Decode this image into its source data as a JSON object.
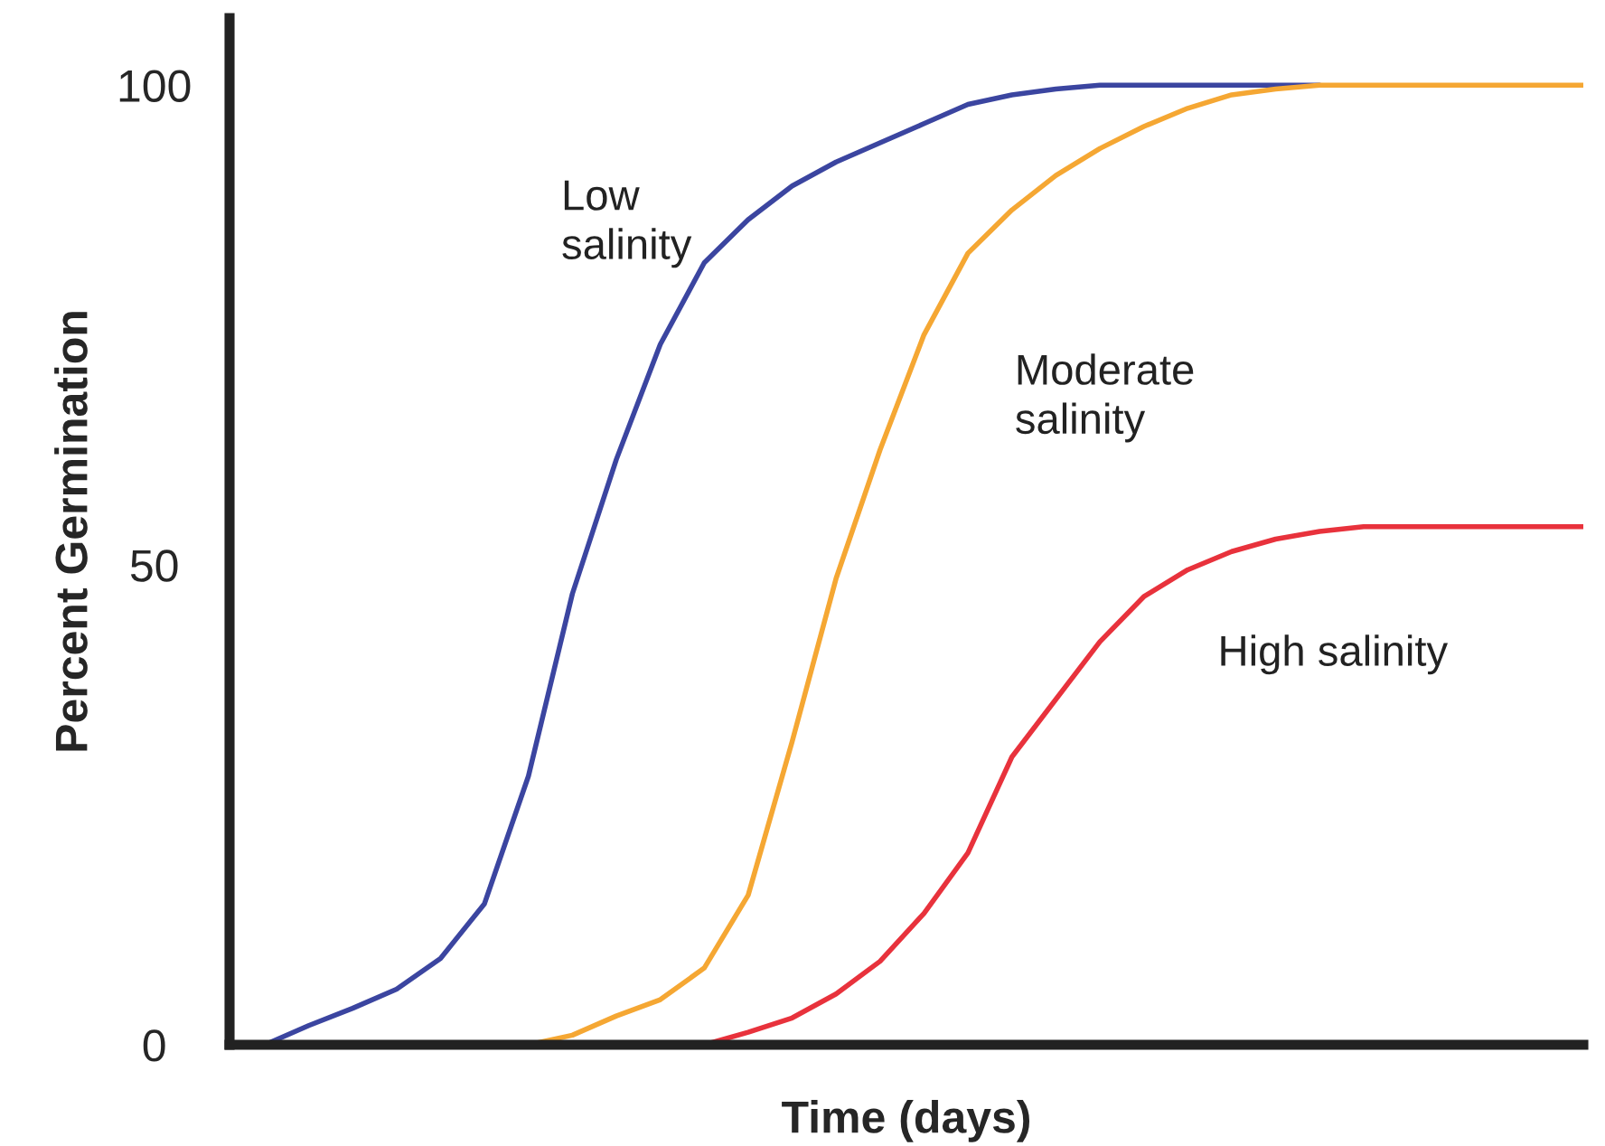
{
  "chart_data": {
    "type": "line",
    "xlabel": "Time (days)",
    "ylabel": "Percent Germination",
    "categories": [
      null,
      null,
      null,
      null,
      null,
      null,
      null,
      null,
      null,
      null,
      null,
      null,
      null,
      null,
      null,
      null,
      null,
      null,
      null,
      null,
      null,
      null,
      null,
      null,
      null,
      null,
      null,
      null,
      null,
      null,
      null
    ],
    "series": [
      {
        "name": "Low\nsalinity",
        "color": "#3b45a0",
        "values": [
          0,
          2,
          3.8,
          5.8,
          9,
          14.7,
          28,
          47,
          61,
          73,
          81.5,
          86,
          89.5,
          92,
          94,
          96,
          98,
          99,
          99.6,
          100,
          100,
          100,
          100,
          100,
          100,
          null,
          null,
          null,
          null,
          null,
          null
        ]
      },
      {
        "name": "Moderate\nsalinity",
        "color": "#f5a733",
        "values": [
          null,
          null,
          null,
          null,
          null,
          null,
          0,
          1,
          3,
          4.7,
          8,
          15.6,
          31.6,
          48.6,
          62,
          74,
          82.5,
          87,
          90.6,
          93.4,
          95.7,
          97.6,
          99,
          99.6,
          100,
          100,
          100,
          100,
          100,
          100,
          100
        ]
      },
      {
        "name": "High salinity",
        "color": "#e8323c",
        "values": [
          null,
          null,
          null,
          null,
          null,
          null,
          null,
          null,
          null,
          null,
          0,
          1.3,
          2.8,
          5.3,
          8.7,
          13.7,
          20,
          30,
          36,
          42,
          46.7,
          49.5,
          51.4,
          52.7,
          53.5,
          54,
          54,
          54,
          54,
          54,
          54
        ]
      }
    ],
    "ylim": [
      0,
      107
    ],
    "yticks": [
      0,
      50,
      100
    ],
    "tick_labels": "y",
    "grid": false,
    "legend": false,
    "marker": "none",
    "line_style": "solid"
  }
}
